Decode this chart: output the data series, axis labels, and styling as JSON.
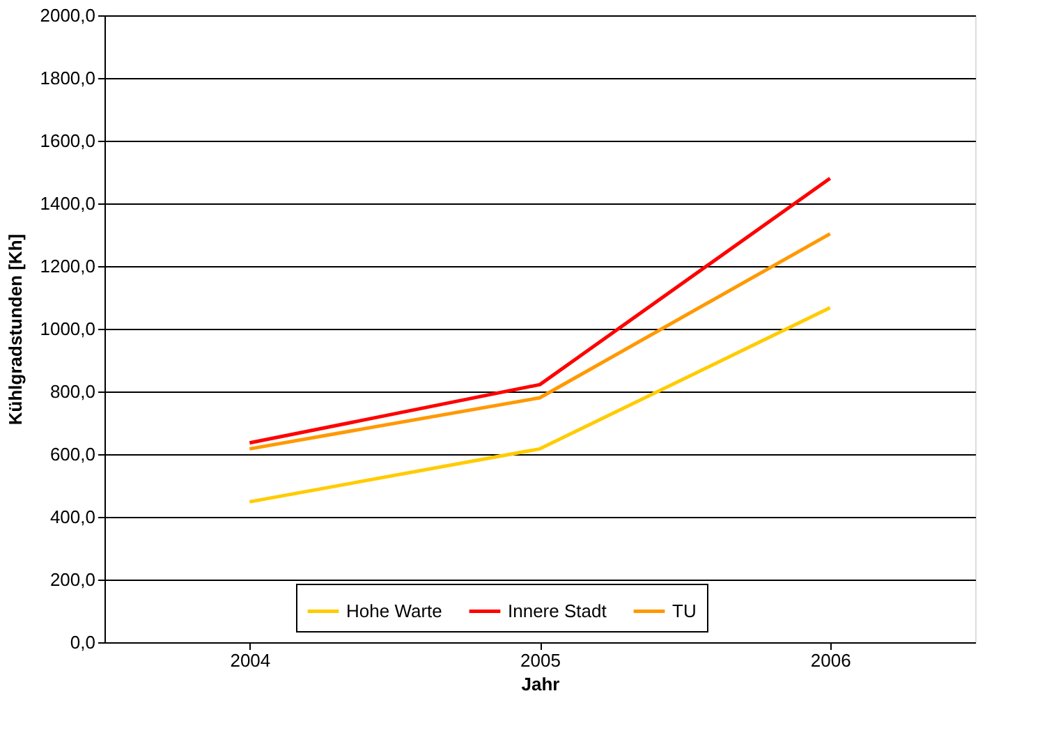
{
  "chart_data": {
    "type": "line",
    "xlabel": "Jahr",
    "ylabel": "Kühlgradstunden [Kh]",
    "categories": [
      "2004",
      "2005",
      "2006"
    ],
    "series": [
      {
        "name": "Hohe Warte",
        "color": "#ffcc00",
        "values": [
          448,
          617,
          1067
        ]
      },
      {
        "name": "Innere Stadt",
        "color": "#ff0000",
        "values": [
          636,
          822,
          1480
        ]
      },
      {
        "name": "TU",
        "color": "#ff9900",
        "values": [
          617,
          780,
          1303
        ]
      }
    ],
    "ylim": [
      0,
      2000
    ],
    "yticks": [
      {
        "value": 0,
        "label": "0,0"
      },
      {
        "value": 200,
        "label": "200,0"
      },
      {
        "value": 400,
        "label": "400,0"
      },
      {
        "value": 600,
        "label": "600,0"
      },
      {
        "value": 800,
        "label": "800,0"
      },
      {
        "value": 1000,
        "label": "1000,0"
      },
      {
        "value": 1200,
        "label": "1200,0"
      },
      {
        "value": 1400,
        "label": "1400,0"
      },
      {
        "value": 1600,
        "label": "1600,0"
      },
      {
        "value": 1800,
        "label": "1800,0"
      },
      {
        "value": 2000,
        "label": "2000,0"
      }
    ],
    "grid": "y",
    "legend": "bottom",
    "marker": "none",
    "line_style": "solid"
  }
}
